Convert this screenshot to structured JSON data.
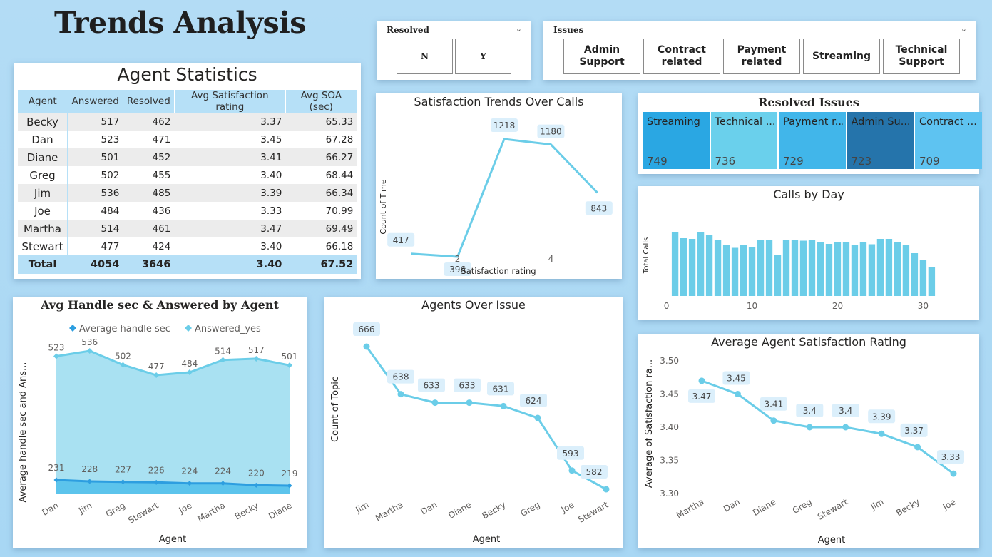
{
  "page_title": "Trends Analysis",
  "colors": {
    "accent": "#6bcde8",
    "dark_accent": "#41a8dd",
    "header_blue": "#b6e0f7"
  },
  "slicers": {
    "resolved": {
      "title": "Resolved",
      "options": [
        "N",
        "Y"
      ]
    },
    "issues": {
      "title": "Issues",
      "options": [
        "Admin Support",
        "Contract related",
        "Payment related",
        "Streaming",
        "Technical Support"
      ]
    }
  },
  "agent_statistics": {
    "title": "Agent Statistics",
    "columns": [
      "Agent",
      "Answered",
      "Resolved",
      "Avg Satisfaction rating",
      "Avg SOA (sec)"
    ],
    "rows": [
      [
        "Becky",
        "517",
        "462",
        "3.37",
        "65.33"
      ],
      [
        "Dan",
        "523",
        "471",
        "3.45",
        "67.28"
      ],
      [
        "Diane",
        "501",
        "452",
        "3.41",
        "66.27"
      ],
      [
        "Greg",
        "502",
        "455",
        "3.40",
        "68.44"
      ],
      [
        "Jim",
        "536",
        "485",
        "3.39",
        "66.34"
      ],
      [
        "Joe",
        "484",
        "436",
        "3.33",
        "70.99"
      ],
      [
        "Martha",
        "514",
        "461",
        "3.47",
        "69.49"
      ],
      [
        "Stewart",
        "477",
        "424",
        "3.40",
        "66.18"
      ]
    ],
    "total": [
      "Total",
      "4054",
      "3646",
      "3.40",
      "67.52"
    ]
  },
  "resolved_issues": {
    "title": "Resolved Issues",
    "tiles": [
      {
        "label": "Streaming",
        "value": "749",
        "color": "#2aa7e3"
      },
      {
        "label": "Technical ...",
        "value": "736",
        "color": "#6ad0ec"
      },
      {
        "label": "Payment r...",
        "value": "729",
        "color": "#41b6ea"
      },
      {
        "label": "Admin Su...",
        "value": "723",
        "color": "#2574ab"
      },
      {
        "label": "Contract ...",
        "value": "709",
        "color": "#5ec3f1"
      }
    ]
  },
  "chart_data": [
    {
      "id": "satisfaction-trends",
      "type": "line",
      "title": "Satisfaction Trends Over Calls",
      "xlabel": "Satisfaction rating",
      "ylabel": "Count of Time",
      "x": [
        1,
        2,
        3,
        4,
        5
      ],
      "values": [
        417,
        396,
        1218,
        1180,
        843
      ],
      "x_ticks": [
        2,
        4
      ],
      "xlim": [
        0.6,
        5.4
      ]
    },
    {
      "id": "calls-by-day",
      "type": "bar",
      "title": "Calls by Day",
      "ylabel": "Total Calls",
      "x": [
        1,
        2,
        3,
        4,
        5,
        6,
        7,
        8,
        9,
        10,
        11,
        12,
        13,
        14,
        15,
        16,
        17,
        18,
        19,
        20,
        21,
        22,
        23,
        24,
        25,
        26,
        27,
        28,
        29,
        30,
        31
      ],
      "values": [
        330,
        312,
        310,
        330,
        321,
        307,
        292,
        285,
        292,
        287,
        307,
        307,
        265,
        307,
        307,
        305,
        307,
        300,
        296,
        302,
        302,
        294,
        302,
        295,
        310,
        310,
        302,
        292,
        270,
        250,
        230
      ],
      "x_ticks": [
        0,
        10,
        20,
        30
      ],
      "xlim": [
        -0.8,
        31.8
      ],
      "ylim": [
        0,
        400
      ]
    },
    {
      "id": "avg-handle-answered",
      "type": "area",
      "title": "Avg Handle sec & Answered by Agent",
      "xlabel": "Agent",
      "ylabel": "Average handle sec and Ans...",
      "categories": [
        "Dan",
        "Jim",
        "Greg",
        "Stewart",
        "Joe",
        "Martha",
        "Becky",
        "Diane"
      ],
      "series": [
        {
          "name": "Average handle sec",
          "values": [
            231,
            228,
            227,
            226,
            224,
            224,
            220,
            219
          ]
        },
        {
          "name": "Answered_yes",
          "values": [
            523,
            536,
            502,
            477,
            484,
            514,
            517,
            501
          ]
        }
      ],
      "ylim": [
        200,
        540
      ]
    },
    {
      "id": "agents-over-issue",
      "type": "line",
      "title": "Agents Over Issue",
      "xlabel": "Agent",
      "ylabel": "Count of Topic",
      "categories": [
        "Jim",
        "Martha",
        "Dan",
        "Diane",
        "Becky",
        "Greg",
        "Joe",
        "Stewart"
      ],
      "values": [
        666,
        638,
        633,
        633,
        631,
        624,
        593,
        582
      ],
      "ylim": [
        570,
        672
      ]
    },
    {
      "id": "avg-agent-satisfaction",
      "type": "line",
      "title": "Average Agent Satisfaction Rating",
      "xlabel": "Agent",
      "ylabel": "Average of Satisfaction ra...",
      "categories": [
        "Martha",
        "Dan",
        "Diane",
        "Greg",
        "Stewart",
        "Jim",
        "Becky",
        "Joe"
      ],
      "values": [
        3.47,
        3.45,
        3.41,
        3.4,
        3.4,
        3.39,
        3.37,
        3.33
      ],
      "y_ticks": [
        "3.30",
        "3.35",
        "3.40",
        "3.45",
        "3.50"
      ],
      "ylim": [
        3.3,
        3.5
      ]
    }
  ]
}
